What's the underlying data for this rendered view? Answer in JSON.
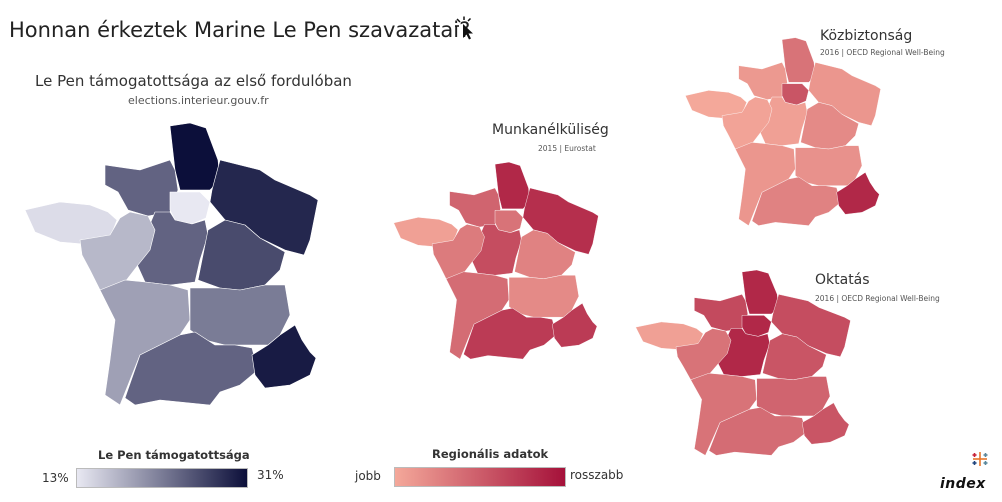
{
  "page": {
    "title": "Honnan érkeztek Marine Le Pen szavazatai?",
    "icons": {
      "cursor": "cursor-click-icon",
      "tableau": "tableau-logo-icon"
    },
    "brand": "index"
  },
  "maps": {
    "lepen": {
      "title": "Le Pen támogatottsága az első fordulóban",
      "subtitle": "elections.interieur.gouv.fr",
      "unit": "%",
      "regions": {
        "nord": 31,
        "normandie": 24,
        "bretagne": 14,
        "idf": 13,
        "grandest": 29,
        "centre": 24,
        "pdl": 17,
        "bfc": 26,
        "nouvelle": 19,
        "ara": 22,
        "occitanie": 24,
        "paca": 30
      }
    },
    "munka": {
      "title": "Munkanélküliség",
      "subtitle": "2015 | Eurostat",
      "regions": {
        "nord": 0.85,
        "normandie": 0.45,
        "bretagne": 0.05,
        "idf": 0.35,
        "grandest": 0.8,
        "centre": 0.6,
        "pdl": 0.3,
        "bfc": 0.25,
        "nouvelle": 0.4,
        "ara": 0.2,
        "occitanie": 0.72,
        "paca": 0.72
      }
    },
    "kozbiz": {
      "title": "Közbiztonság",
      "subtitle": "2016 | OECD Regional Well-Being",
      "regions": {
        "nord": 0.35,
        "normandie": 0.1,
        "bretagne": 0.0,
        "idf": 0.55,
        "grandest": 0.12,
        "centre": 0.05,
        "pdl": 0.03,
        "bfc": 0.2,
        "nouvelle": 0.12,
        "ara": 0.15,
        "occitanie": 0.25,
        "paca": 0.85
      }
    },
    "oktatas": {
      "title": "Oktatás",
      "subtitle": "2016 | OECD Regional Well-Being",
      "regions": {
        "nord": 0.85,
        "normandie": 0.62,
        "bretagne": 0.05,
        "idf": 0.85,
        "grandest": 0.6,
        "centre": 0.85,
        "pdl": 0.35,
        "bfc": 0.55,
        "nouvelle": 0.35,
        "ara": 0.45,
        "occitanie": 0.4,
        "paca": 0.55
      }
    }
  },
  "legends": {
    "lepen": {
      "title": "Le Pen támogatottsága",
      "min_label": "13%",
      "max_label": "31%",
      "min": 13,
      "max": 31,
      "color_min": "#e8e8f2",
      "color_max": "#0c0f3a"
    },
    "regional": {
      "title": "Regionális adatok",
      "min_label": "jobb",
      "max_label": "rosszabb",
      "color_min": "#f4a89a",
      "color_max": "#a5113a"
    }
  },
  "colors": {
    "accent_red": "#a5113a",
    "accent_navy": "#0c0f3a"
  }
}
